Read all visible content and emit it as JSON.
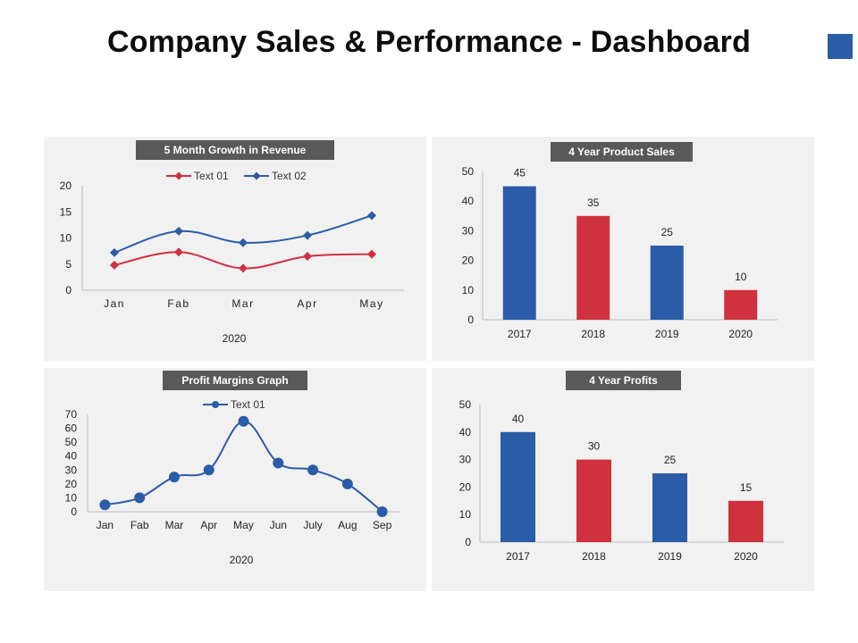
{
  "title": "Company Sales & Performance - Dashboard",
  "colors": {
    "blue": "#2a5ca8",
    "red": "#d0313f",
    "badge": "#595959",
    "panel": "#f1f1f1"
  },
  "chart_data": [
    {
      "type": "line",
      "title": "5 Month Growth in Revenue",
      "categories": [
        "Jan",
        "Fab",
        "Mar",
        "Apr",
        "May"
      ],
      "series": [
        {
          "name": "Text 01",
          "values": [
            4.8,
            7.3,
            4.2,
            6.5,
            6.9
          ],
          "color": "#d0313f"
        },
        {
          "name": "Text 02",
          "values": [
            7.2,
            11.3,
            9.1,
            10.5,
            14.3
          ],
          "color": "#2a5ca8"
        }
      ],
      "yticks": [
        "0",
        "5",
        "10",
        "15",
        "20"
      ],
      "ylim": [
        0,
        20
      ],
      "xlabel": "2020",
      "legend": "top"
    },
    {
      "type": "bar",
      "title": "4 Year Product Sales",
      "categories": [
        "2017",
        "2018",
        "2019",
        "2020"
      ],
      "values": [
        45,
        35,
        25,
        10
      ],
      "labels": [
        "45",
        "35",
        "25",
        "10"
      ],
      "yticks": [
        "0",
        "10",
        "20",
        "30",
        "40",
        "50"
      ],
      "ylim": [
        0,
        50
      ]
    },
    {
      "type": "line",
      "title": "Profit Margins Graph",
      "categories": [
        "Jan",
        "Fab",
        "Mar",
        "Apr",
        "May",
        "Jun",
        "July",
        "Aug",
        "Sep"
      ],
      "series": [
        {
          "name": "Text 01",
          "values": [
            5,
            10,
            25,
            30,
            65,
            35,
            30,
            20,
            0
          ],
          "color": "#2a5ca8"
        }
      ],
      "yticks": [
        "0",
        "10",
        "20",
        "30",
        "40",
        "50",
        "60",
        "70"
      ],
      "ylim": [
        0,
        70
      ],
      "xlabel": "2020",
      "legend": "top"
    },
    {
      "type": "bar",
      "title": "4 Year Profits",
      "categories": [
        "2017",
        "2018",
        "2019",
        "2020"
      ],
      "values": [
        40,
        30,
        25,
        15
      ],
      "labels": [
        "40",
        "30",
        "25",
        "15"
      ],
      "yticks": [
        "0",
        "10",
        "20",
        "30",
        "40",
        "50"
      ],
      "ylim": [
        0,
        50
      ]
    }
  ]
}
